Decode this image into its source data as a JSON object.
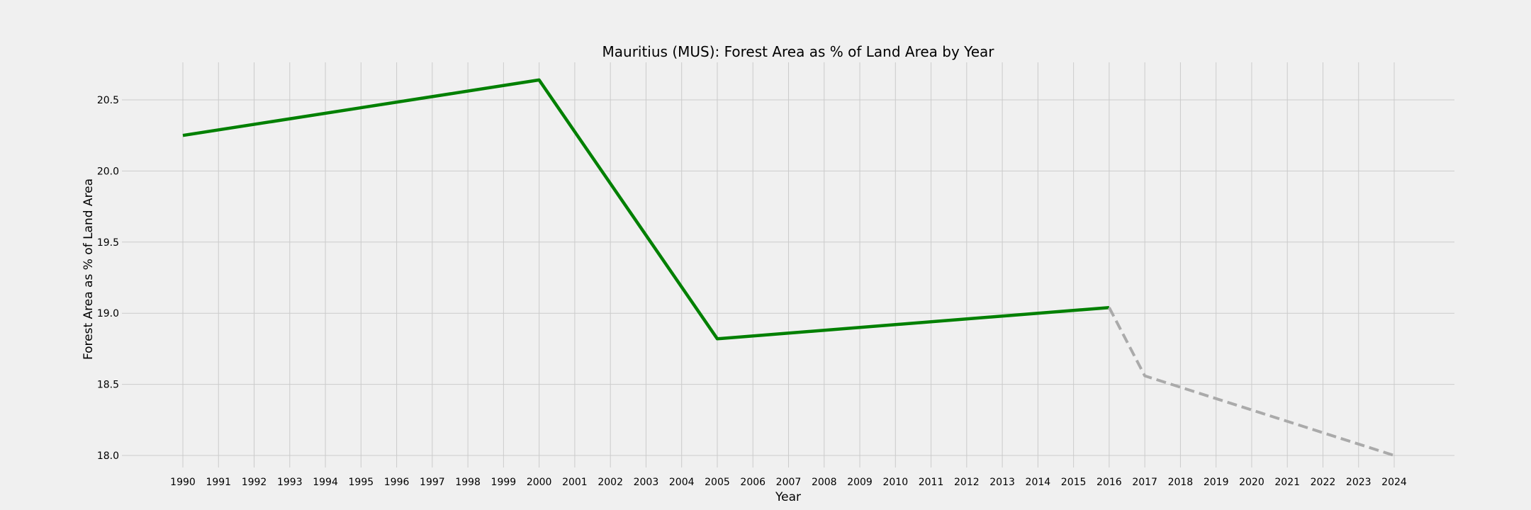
{
  "chart_data": {
    "type": "line",
    "title": "Mauritius (MUS): Forest Area as % of Land Area by Year",
    "xlabel": "Year",
    "ylabel": "Forest Area as % of Land Area",
    "xlim": [
      1990,
      2024
    ],
    "ylim": [
      18.0,
      20.6
    ],
    "xticks": [
      1990,
      1991,
      1992,
      1993,
      1994,
      1995,
      1996,
      1997,
      1998,
      1999,
      2000,
      2001,
      2002,
      2003,
      2004,
      2005,
      2006,
      2007,
      2008,
      2009,
      2010,
      2011,
      2012,
      2013,
      2014,
      2015,
      2016,
      2017,
      2018,
      2019,
      2020,
      2021,
      2022,
      2023,
      2024
    ],
    "yticks": [
      "18.0",
      "18.5",
      "19.0",
      "19.5",
      "20.0",
      "20.5"
    ],
    "grid": true,
    "series": [
      {
        "style": "solid",
        "color": "#008000",
        "x": [
          1990,
          2000,
          2005,
          2016
        ],
        "y": [
          20.25,
          20.64,
          18.82,
          19.04
        ]
      },
      {
        "style": "dashed",
        "color": "#aaaaaa",
        "x": [
          2016,
          2017,
          2024
        ],
        "y": [
          19.04,
          18.56,
          18.0
        ]
      }
    ]
  }
}
